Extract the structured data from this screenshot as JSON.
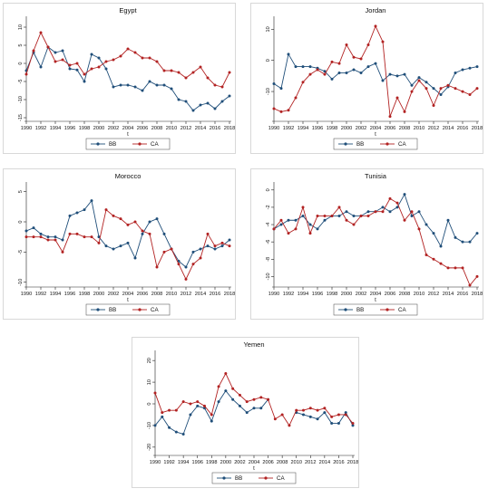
{
  "figure": {
    "colors": {
      "BB": "#1f4e79",
      "CA": "#b22222"
    }
  },
  "chart_data": [
    {
      "type": "line",
      "title": "Egypt",
      "xlabel": "t",
      "x": [
        1990,
        1991,
        1992,
        1993,
        1994,
        1995,
        1996,
        1997,
        1998,
        1999,
        2000,
        2001,
        2002,
        2003,
        2004,
        2005,
        2006,
        2007,
        2008,
        2009,
        2010,
        2011,
        2012,
        2013,
        2014,
        2015,
        2016,
        2017,
        2018
      ],
      "xticks": [
        "1990",
        "1992",
        "1994",
        "1996",
        "1998",
        "2000",
        "2002",
        "2004",
        "2006",
        "2008",
        "2010",
        "2012",
        "2014",
        "2016",
        "2018"
      ],
      "yticks": [
        -15,
        -10,
        -5,
        0,
        5,
        10
      ],
      "yticklabels": [
        "-15",
        "-10",
        "-5",
        "0",
        "5",
        "10"
      ],
      "ylim": [
        -15.5,
        12
      ],
      "series": [
        {
          "name": "BB",
          "values": [
            -2,
            3,
            -1,
            4.5,
            3,
            3.5,
            -1.5,
            -1.8,
            -5,
            2.5,
            1.5,
            -1.5,
            -6.5,
            -6,
            -6,
            -6.5,
            -7.5,
            -5,
            -6,
            -6,
            -7,
            -10,
            -10.5,
            -13,
            -11.5,
            -11,
            -12.5,
            -10.5,
            -9
          ]
        },
        {
          "name": "CA",
          "values": [
            -3,
            3.5,
            8.5,
            4.5,
            0.5,
            1,
            -0.5,
            0,
            -3,
            -1.5,
            -1,
            0.5,
            1,
            2,
            4,
            3,
            1.5,
            1.5,
            0.5,
            -2,
            -2,
            -2.5,
            -4,
            -2.5,
            -1,
            -4,
            -6,
            -6.5,
            -2.5
          ]
        }
      ],
      "legend": [
        "BB",
        "CA"
      ],
      "legend_position": "bottom"
    },
    {
      "type": "line",
      "title": "Jordan",
      "xlabel": "t",
      "x": [
        1990,
        1991,
        1992,
        1993,
        1994,
        1995,
        1996,
        1997,
        1998,
        1999,
        2000,
        2001,
        2002,
        2003,
        2004,
        2005,
        2006,
        2007,
        2008,
        2009,
        2010,
        2011,
        2012,
        2013,
        2014,
        2015,
        2016,
        2017,
        2018
      ],
      "xticks": [
        "1990",
        "1992",
        "1994",
        "1996",
        "1998",
        "2000",
        "2002",
        "2004",
        "2006",
        "2008",
        "2010",
        "2012",
        "2014",
        "2016",
        "2018"
      ],
      "yticks": [
        -10,
        0,
        10
      ],
      "yticklabels": [
        "-10",
        "0",
        "10"
      ],
      "ylim": [
        -19,
        13
      ],
      "series": [
        {
          "name": "BB",
          "values": [
            -7.5,
            -9,
            2,
            -2,
            -2,
            -2,
            -2.5,
            -3.5,
            -6,
            -4,
            -4,
            -3,
            -4,
            -2,
            -1,
            -6.5,
            -4.5,
            -5,
            -4.5,
            -8,
            -5.5,
            -7,
            -9,
            -11,
            -8.5,
            -4,
            -3,
            -2.5,
            -2
          ]
        },
        {
          "name": "CA",
          "values": [
            -15.5,
            -16.5,
            -16,
            -12,
            -7,
            -4.5,
            -3,
            -4.5,
            -0.5,
            -1,
            5,
            1,
            0.5,
            5,
            11,
            6,
            -18,
            -12,
            -16.5,
            -10,
            -6.5,
            -9,
            -14.5,
            -9,
            -8,
            -9,
            -10,
            -11,
            -9
          ]
        }
      ],
      "legend": [
        "BB",
        "CA"
      ],
      "legend_position": "bottom"
    },
    {
      "type": "line",
      "title": "Morocco",
      "xlabel": "t",
      "x": [
        1990,
        1991,
        1992,
        1993,
        1994,
        1995,
        1996,
        1997,
        1998,
        1999,
        2000,
        2001,
        2002,
        2003,
        2004,
        2005,
        2006,
        2007,
        2008,
        2009,
        2010,
        2011,
        2012,
        2013,
        2014,
        2015,
        2016,
        2017,
        2018
      ],
      "xticks": [
        "1990",
        "1992",
        "1994",
        "1996",
        "1998",
        "2000",
        "2002",
        "2004",
        "2006",
        "2008",
        "2010",
        "2012",
        "2014",
        "2016",
        "2018"
      ],
      "yticks": [
        -10,
        -5,
        0,
        5
      ],
      "yticklabels": [
        "-10",
        "-5",
        "0",
        "5"
      ],
      "ylim": [
        -10.5,
        6
      ],
      "series": [
        {
          "name": "BB",
          "values": [
            -1.5,
            -1,
            -2,
            -2.5,
            -2.5,
            -3,
            1,
            1.5,
            2,
            3.5,
            -2.5,
            -4,
            -4.5,
            -4,
            -3.5,
            -6,
            -2,
            0,
            0.5,
            -2,
            -4.5,
            -6.5,
            -7.5,
            -5,
            -4.5,
            -4,
            -4.5,
            -4,
            -3
          ]
        },
        {
          "name": "CA",
          "values": [
            -2.5,
            -2.5,
            -2.5,
            -3,
            -3,
            -5,
            -2,
            -2,
            -2.5,
            -2.5,
            -3.5,
            2,
            1,
            0.5,
            -0.5,
            0,
            -1.5,
            -2,
            -7.5,
            -5,
            -4.5,
            -7,
            -9.5,
            -7,
            -6,
            -2,
            -4,
            -3.5,
            -4
          ]
        }
      ],
      "legend": [
        "BB",
        "CA"
      ],
      "legend_position": "bottom"
    },
    {
      "type": "line",
      "title": "Tunisia",
      "xlabel": "t",
      "x": [
        1990,
        1991,
        1992,
        1993,
        1994,
        1995,
        1996,
        1997,
        1998,
        1999,
        2000,
        2001,
        2002,
        2003,
        2004,
        2005,
        2006,
        2007,
        2008,
        2009,
        2010,
        2011,
        2012,
        2013,
        2014,
        2015,
        2016,
        2017,
        2018
      ],
      "xticks": [
        "1990",
        "1992",
        "1994",
        "1996",
        "1998",
        "2000",
        "2002",
        "2004",
        "2006",
        "2008",
        "2010",
        "2012",
        "2014",
        "2016",
        "2018"
      ],
      "yticks": [
        -10,
        -8,
        -6,
        -4,
        -2,
        0
      ],
      "yticklabels": [
        "-10",
        "-8",
        "-6",
        "-4",
        "-2",
        "0"
      ],
      "ylim": [
        -11,
        0.5
      ],
      "series": [
        {
          "name": "BB",
          "values": [
            -4.5,
            -4,
            -3.5,
            -3.5,
            -3,
            -4,
            -4.5,
            -3.5,
            -3,
            -3,
            -2.5,
            -3,
            -3,
            -2.5,
            -2.5,
            -2,
            -2.5,
            -2,
            -0.5,
            -3,
            -2.5,
            -4,
            -5,
            -6.5,
            -3.5,
            -5.5,
            -6,
            -6,
            -5
          ]
        },
        {
          "name": "CA",
          "values": [
            -4.5,
            -3.5,
            -5,
            -4.5,
            -2,
            -5,
            -3,
            -3,
            -3,
            -2,
            -3.5,
            -4,
            -3,
            -3,
            -2.5,
            -2.5,
            -1,
            -1.5,
            -3.5,
            -2.5,
            -4.5,
            -7.5,
            -8,
            -8.5,
            -9,
            -9,
            -9,
            -11,
            -10
          ]
        }
      ],
      "legend": [
        "BB",
        "CA"
      ],
      "legend_position": "bottom"
    },
    {
      "type": "line",
      "title": "Yemen",
      "xlabel": "t",
      "x": [
        1990,
        1991,
        1992,
        1993,
        1994,
        1995,
        1996,
        1997,
        1998,
        1999,
        2000,
        2001,
        2002,
        2003,
        2004,
        2005,
        2006,
        2007,
        2008,
        2009,
        2010,
        2011,
        2012,
        2013,
        2014,
        2015,
        2016,
        2017,
        2018
      ],
      "xticks": [
        "1990",
        "1992",
        "1994",
        "1996",
        "1998",
        "2000",
        "2002",
        "2004",
        "2006",
        "2008",
        "2010",
        "2012",
        "2014",
        "2016",
        "2018"
      ],
      "yticks": [
        -20,
        -10,
        0,
        10,
        20
      ],
      "yticklabels": [
        "-20",
        "-10",
        "0",
        "10",
        "20"
      ],
      "ylim": [
        -23,
        23
      ],
      "series": [
        {
          "name": "BB",
          "values": [
            -10,
            -6,
            -11,
            -13,
            -14,
            -5,
            -1,
            -2,
            -8,
            1,
            6,
            2,
            -1,
            -4,
            -2,
            -2,
            2,
            null,
            null,
            null,
            -4,
            -5,
            -6,
            -7,
            -4,
            -9,
            -9,
            -4,
            -10
          ]
        },
        {
          "name": "CA",
          "values": [
            5,
            -4,
            -3,
            -3,
            1,
            0,
            1,
            -1,
            -5,
            8,
            14,
            7,
            4,
            1,
            2,
            3,
            2,
            -7,
            -5,
            -10,
            -3,
            -3,
            -2,
            -3,
            -2,
            -6,
            -5,
            -5,
            -9
          ]
        }
      ],
      "legend": [
        "BB",
        "CA"
      ],
      "legend_position": "bottom"
    }
  ]
}
